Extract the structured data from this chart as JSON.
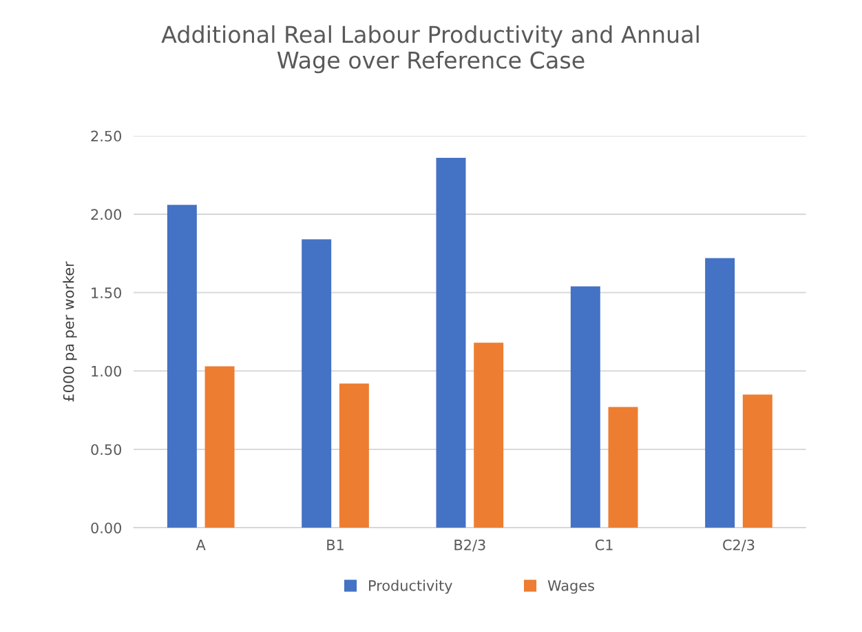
{
  "chart_data": {
    "type": "bar",
    "title": "Additional Real Labour Productivity and Annual\nWage over Reference Case",
    "ylabel": "£000 pa per worker",
    "categories": [
      "A",
      "B1",
      "B2/3",
      "C1",
      "C2/3"
    ],
    "series": [
      {
        "name": "Productivity",
        "color": "#4472c4",
        "values": [
          2.06,
          1.84,
          2.36,
          1.54,
          1.72
        ]
      },
      {
        "name": "Wages",
        "color": "#ed7d31",
        "values": [
          1.03,
          0.92,
          1.18,
          0.77,
          0.85
        ]
      }
    ],
    "ylim": [
      0,
      2.5
    ],
    "yticks": [
      {
        "value": 0,
        "label": "0.00"
      },
      {
        "value": 0.5,
        "label": "0.50"
      },
      {
        "value": 1,
        "label": "1.00"
      },
      {
        "value": 1.5,
        "label": "1.50"
      },
      {
        "value": 2,
        "label": "2.00"
      },
      {
        "value": 2.5,
        "label": "2.50"
      }
    ],
    "grid": "y",
    "legend": "bottom"
  }
}
